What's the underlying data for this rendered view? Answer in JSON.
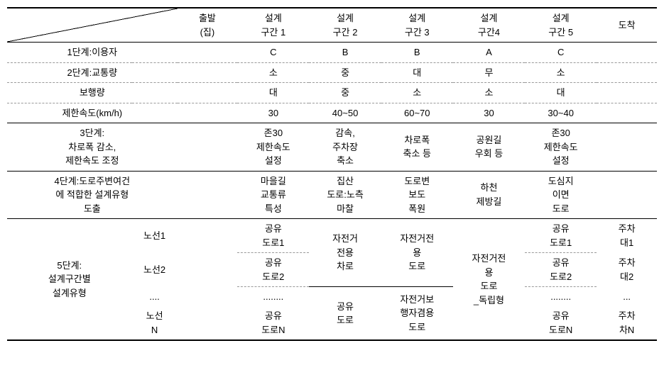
{
  "table": {
    "background_color": "#ffffff",
    "border_color": "#000000",
    "dashed_color": "#999999",
    "font_size": 13,
    "headers": {
      "c0": "",
      "c1": "출발\n(집)",
      "c2": "설계\n구간 1",
      "c3": "설계\n구간 2",
      "c4": "설계\n구간 3",
      "c5": "설계\n구간4",
      "c6": "설계\n구간 5",
      "c7": "도착"
    },
    "r1": {
      "label": "1단계:이용자",
      "c1": "",
      "c2": "C",
      "c3": "B",
      "c4": "B",
      "c5": "A",
      "c6": "C",
      "c7": ""
    },
    "r2": {
      "label": "2단계:교통량",
      "c1": "",
      "c2": "소",
      "c3": "중",
      "c4": "대",
      "c5": "무",
      "c6": "소",
      "c7": ""
    },
    "r3": {
      "label": "보행량",
      "c1": "",
      "c2": "대",
      "c3": "중",
      "c4": "소",
      "c5": "소",
      "c6": "대",
      "c7": ""
    },
    "r4": {
      "label": "제한속도(km/h)",
      "c1": "",
      "c2": "30",
      "c3": "40~50",
      "c4": "60~70",
      "c5": "30",
      "c6": "30~40",
      "c7": ""
    },
    "r5": {
      "label": "3단계:\n차로폭 감소,\n제한속도 조정",
      "c1": "",
      "c2": "존30\n제한속도\n설정",
      "c3": "감속,\n주차장\n축소",
      "c4": "차로폭\n축소 등",
      "c5": "공원길\n우회 등",
      "c6": "존30\n제한속도\n설정",
      "c7": ""
    },
    "r6": {
      "label": "4단계:도로주변여건\n에 적합한 설계유형\n도출",
      "c1": "",
      "c2": "마을길\n교통류\n특성",
      "c3": "집산\n도로:노측\n마찰",
      "c4": "도로변\n보도\n폭원",
      "c5": "하천\n제방길",
      "c6": "도심지\n이면\n도로",
      "c7": ""
    },
    "s5": {
      "label": "5단계:\n설계구간별\n설계유형",
      "route1": "노선1",
      "route2": "노선2",
      "routeDots": "....",
      "routeN": "노선\nN",
      "c2_1": "공유\n도로1",
      "c2_2": "공유\n도로2",
      "c2_dots": "........",
      "c2_N": "공유\n도로N",
      "c3_top": "자전거\n전용\n차로",
      "c3_bot": "공유\n도로",
      "c4_top": "자전거전\n용\n도로",
      "c4_bot": "자전거보\n행자겸용\n도로",
      "c5": "자전거전\n용\n도로\n_독립형",
      "c6_1": "공유\n도로1",
      "c6_2": "공유\n도로2",
      "c6_dots": "........",
      "c6_N": "공유\n도로N",
      "c7_1": "주차\n대1",
      "c7_2": "주차\n대2",
      "c7_dots": "...",
      "c7_N": "주차\n차N"
    }
  }
}
